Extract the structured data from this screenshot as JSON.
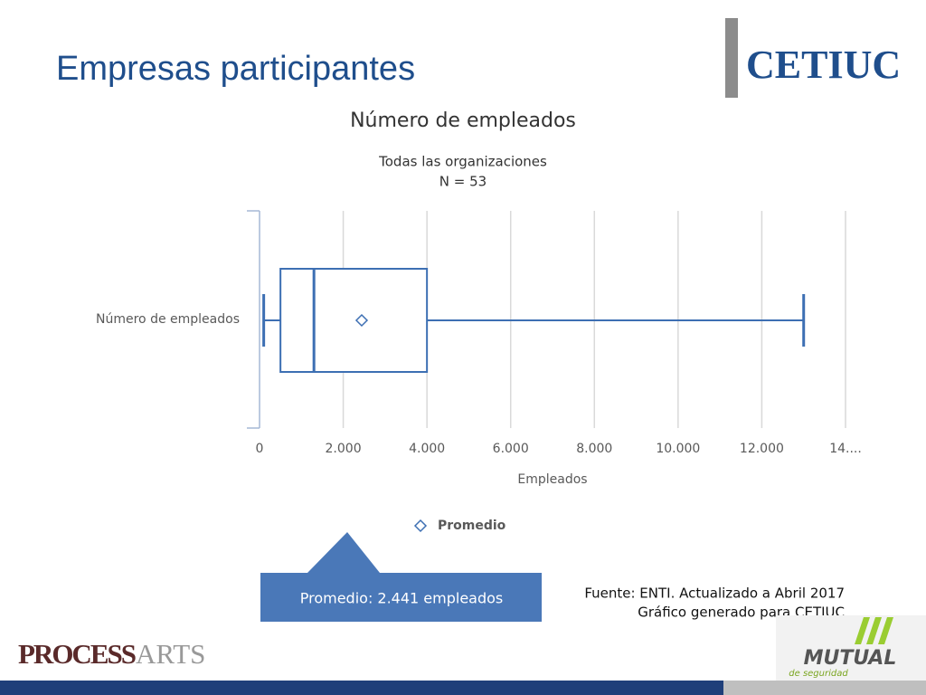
{
  "slide": {
    "title": "Empresas participantes",
    "logo_top": "CETIUC",
    "callout": "Promedio: 2.441 empleados",
    "source": "Fuente: ENTI. Actualizado a Abril 2017",
    "generated": "Gráfico generado para CETIUC",
    "logo_left_a": "PROCESS",
    "logo_left_b": "ARTS",
    "logo_right": "MUTUAL",
    "logo_right_sub": "de seguridad"
  },
  "chart_data": {
    "type": "box",
    "title": "Número de empleados",
    "subtitle": [
      "Todas las organizaciones",
      "N = 53"
    ],
    "categories": [
      "Número de empleados"
    ],
    "color": "#3d6fb3",
    "boxes": [
      {
        "whisker_low": 100,
        "q1": 500,
        "median": 1300,
        "q3": 4000,
        "whisker_high": 13000,
        "mean": 2441
      }
    ],
    "mean_legend": "Promedio",
    "x_label": "Empleados",
    "xlim": [
      0,
      14000
    ],
    "xticks": [
      0,
      {
        "value": 2000,
        "label": "2.000"
      },
      {
        "value": 4000,
        "label": "4.000"
      },
      {
        "value": 6000,
        "label": "6.000"
      },
      {
        "value": 8000,
        "label": "8.000"
      },
      {
        "value": 10000,
        "label": "10.000"
      },
      {
        "value": 12000,
        "label": "12.000"
      },
      {
        "value": 14000,
        "label": "14...."
      }
    ],
    "grid": true
  }
}
